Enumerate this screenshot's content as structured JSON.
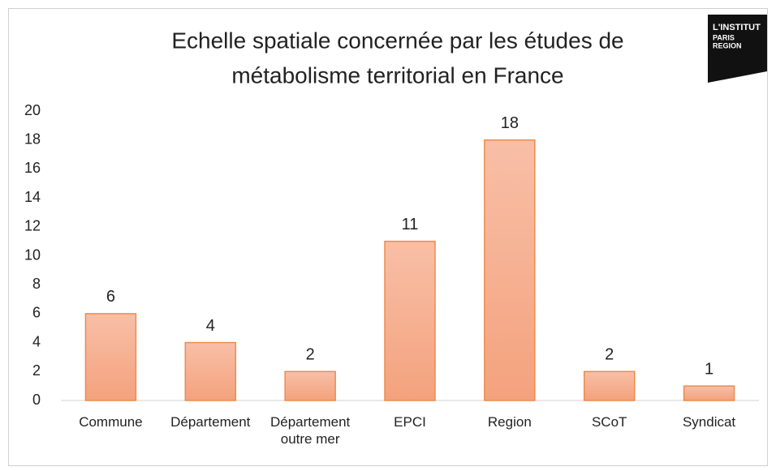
{
  "chart_data": {
    "type": "bar",
    "title": [
      "Echelle spatiale concernée par les études de",
      "métabolisme territorial en France"
    ],
    "categories": [
      "Commune",
      "Département",
      "Département outre mer",
      "EPCI",
      "Region",
      "SCoT",
      "Syndicat"
    ],
    "values": [
      6,
      4,
      2,
      11,
      18,
      2,
      1
    ],
    "color": "#f5ad8c",
    "edge_color": "#ed8b4e",
    "ylim": [
      0,
      20
    ],
    "yticks": [
      0,
      2,
      4,
      6,
      8,
      10,
      12,
      14,
      16,
      18,
      20
    ],
    "grid": false
  },
  "logo": [
    "L'INSTITUT",
    "PARIS",
    "REGION"
  ]
}
